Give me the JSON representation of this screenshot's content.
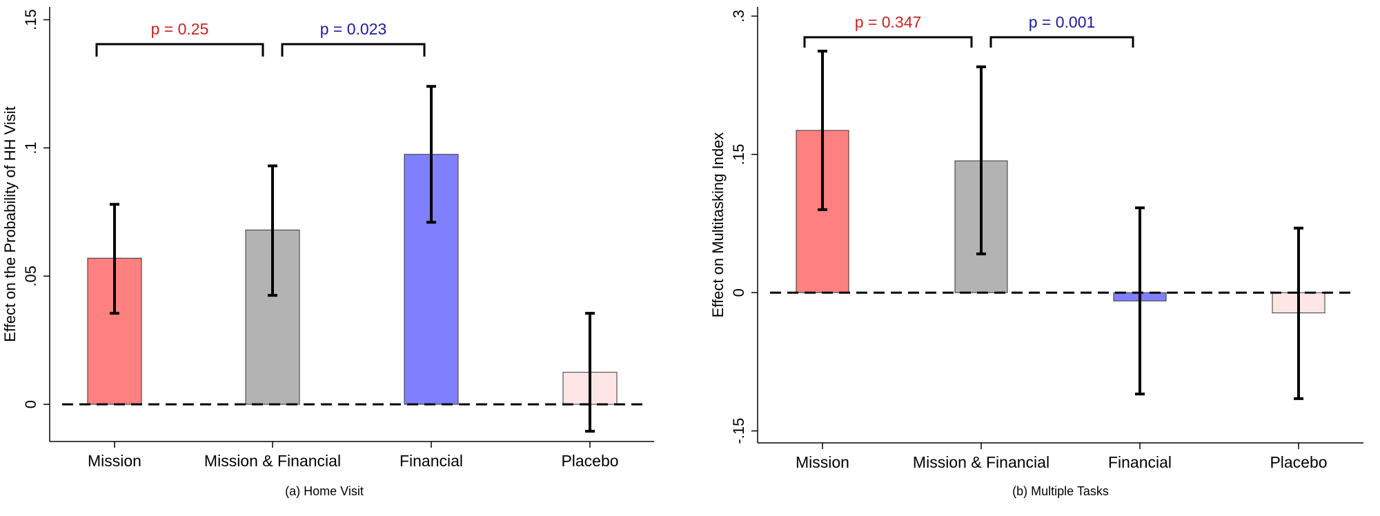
{
  "chart_data": [
    {
      "type": "bar",
      "title": "(a) Home Visit",
      "ylabel": "Effect on the Probability of HH Visit",
      "xlabel": "",
      "categories": [
        "Mission",
        "Mission & Financial",
        "Financial",
        "Placebo"
      ],
      "values": [
        0.057,
        0.068,
        0.0975,
        0.0125
      ],
      "ci_low": [
        0.0355,
        0.0425,
        0.071,
        -0.0105
      ],
      "ci_high": [
        0.078,
        0.093,
        0.124,
        0.0355
      ],
      "colors": [
        "#ff8080",
        "#b3b3b3",
        "#8080ff",
        "#ffe6e6"
      ],
      "ylim": [
        -0.0145,
        0.155
      ],
      "yticks": [
        0,
        0.05,
        0.1,
        0.15
      ],
      "ytick_labels": [
        "0",
        ".05",
        ".1",
        ".15"
      ],
      "reference_line": 0,
      "comparisons": [
        {
          "label": "p = 0.25",
          "from": 0,
          "to": 1,
          "color": "#cc2222"
        },
        {
          "label": "p = 0.023",
          "from": 1,
          "to": 2,
          "color": "#1a1aaa"
        }
      ]
    },
    {
      "type": "bar",
      "title": "(b) Multiple Tasks",
      "ylabel": "Effect on Multitasking Index",
      "xlabel": "",
      "categories": [
        "Mission",
        "Mission & Financial",
        "Financial",
        "Placebo"
      ],
      "values": [
        0.176,
        0.143,
        -0.009,
        -0.022
      ],
      "ci_low": [
        0.09,
        0.042,
        -0.11,
        -0.115
      ],
      "ci_high": [
        0.262,
        0.245,
        0.092,
        0.07
      ],
      "colors": [
        "#ff8080",
        "#b3b3b3",
        "#8080ff",
        "#ffe6e6"
      ],
      "ylim": [
        -0.163,
        0.31
      ],
      "yticks": [
        -0.15,
        0,
        0.15,
        0.3
      ],
      "ytick_labels": [
        "-.15",
        "0",
        ".15",
        ".3"
      ],
      "reference_line": 0,
      "comparisons": [
        {
          "label": "p = 0.347",
          "from": 0,
          "to": 1,
          "color": "#cc2222"
        },
        {
          "label": "p = 0.001",
          "from": 1,
          "to": 2,
          "color": "#1a1aaa"
        }
      ]
    }
  ]
}
